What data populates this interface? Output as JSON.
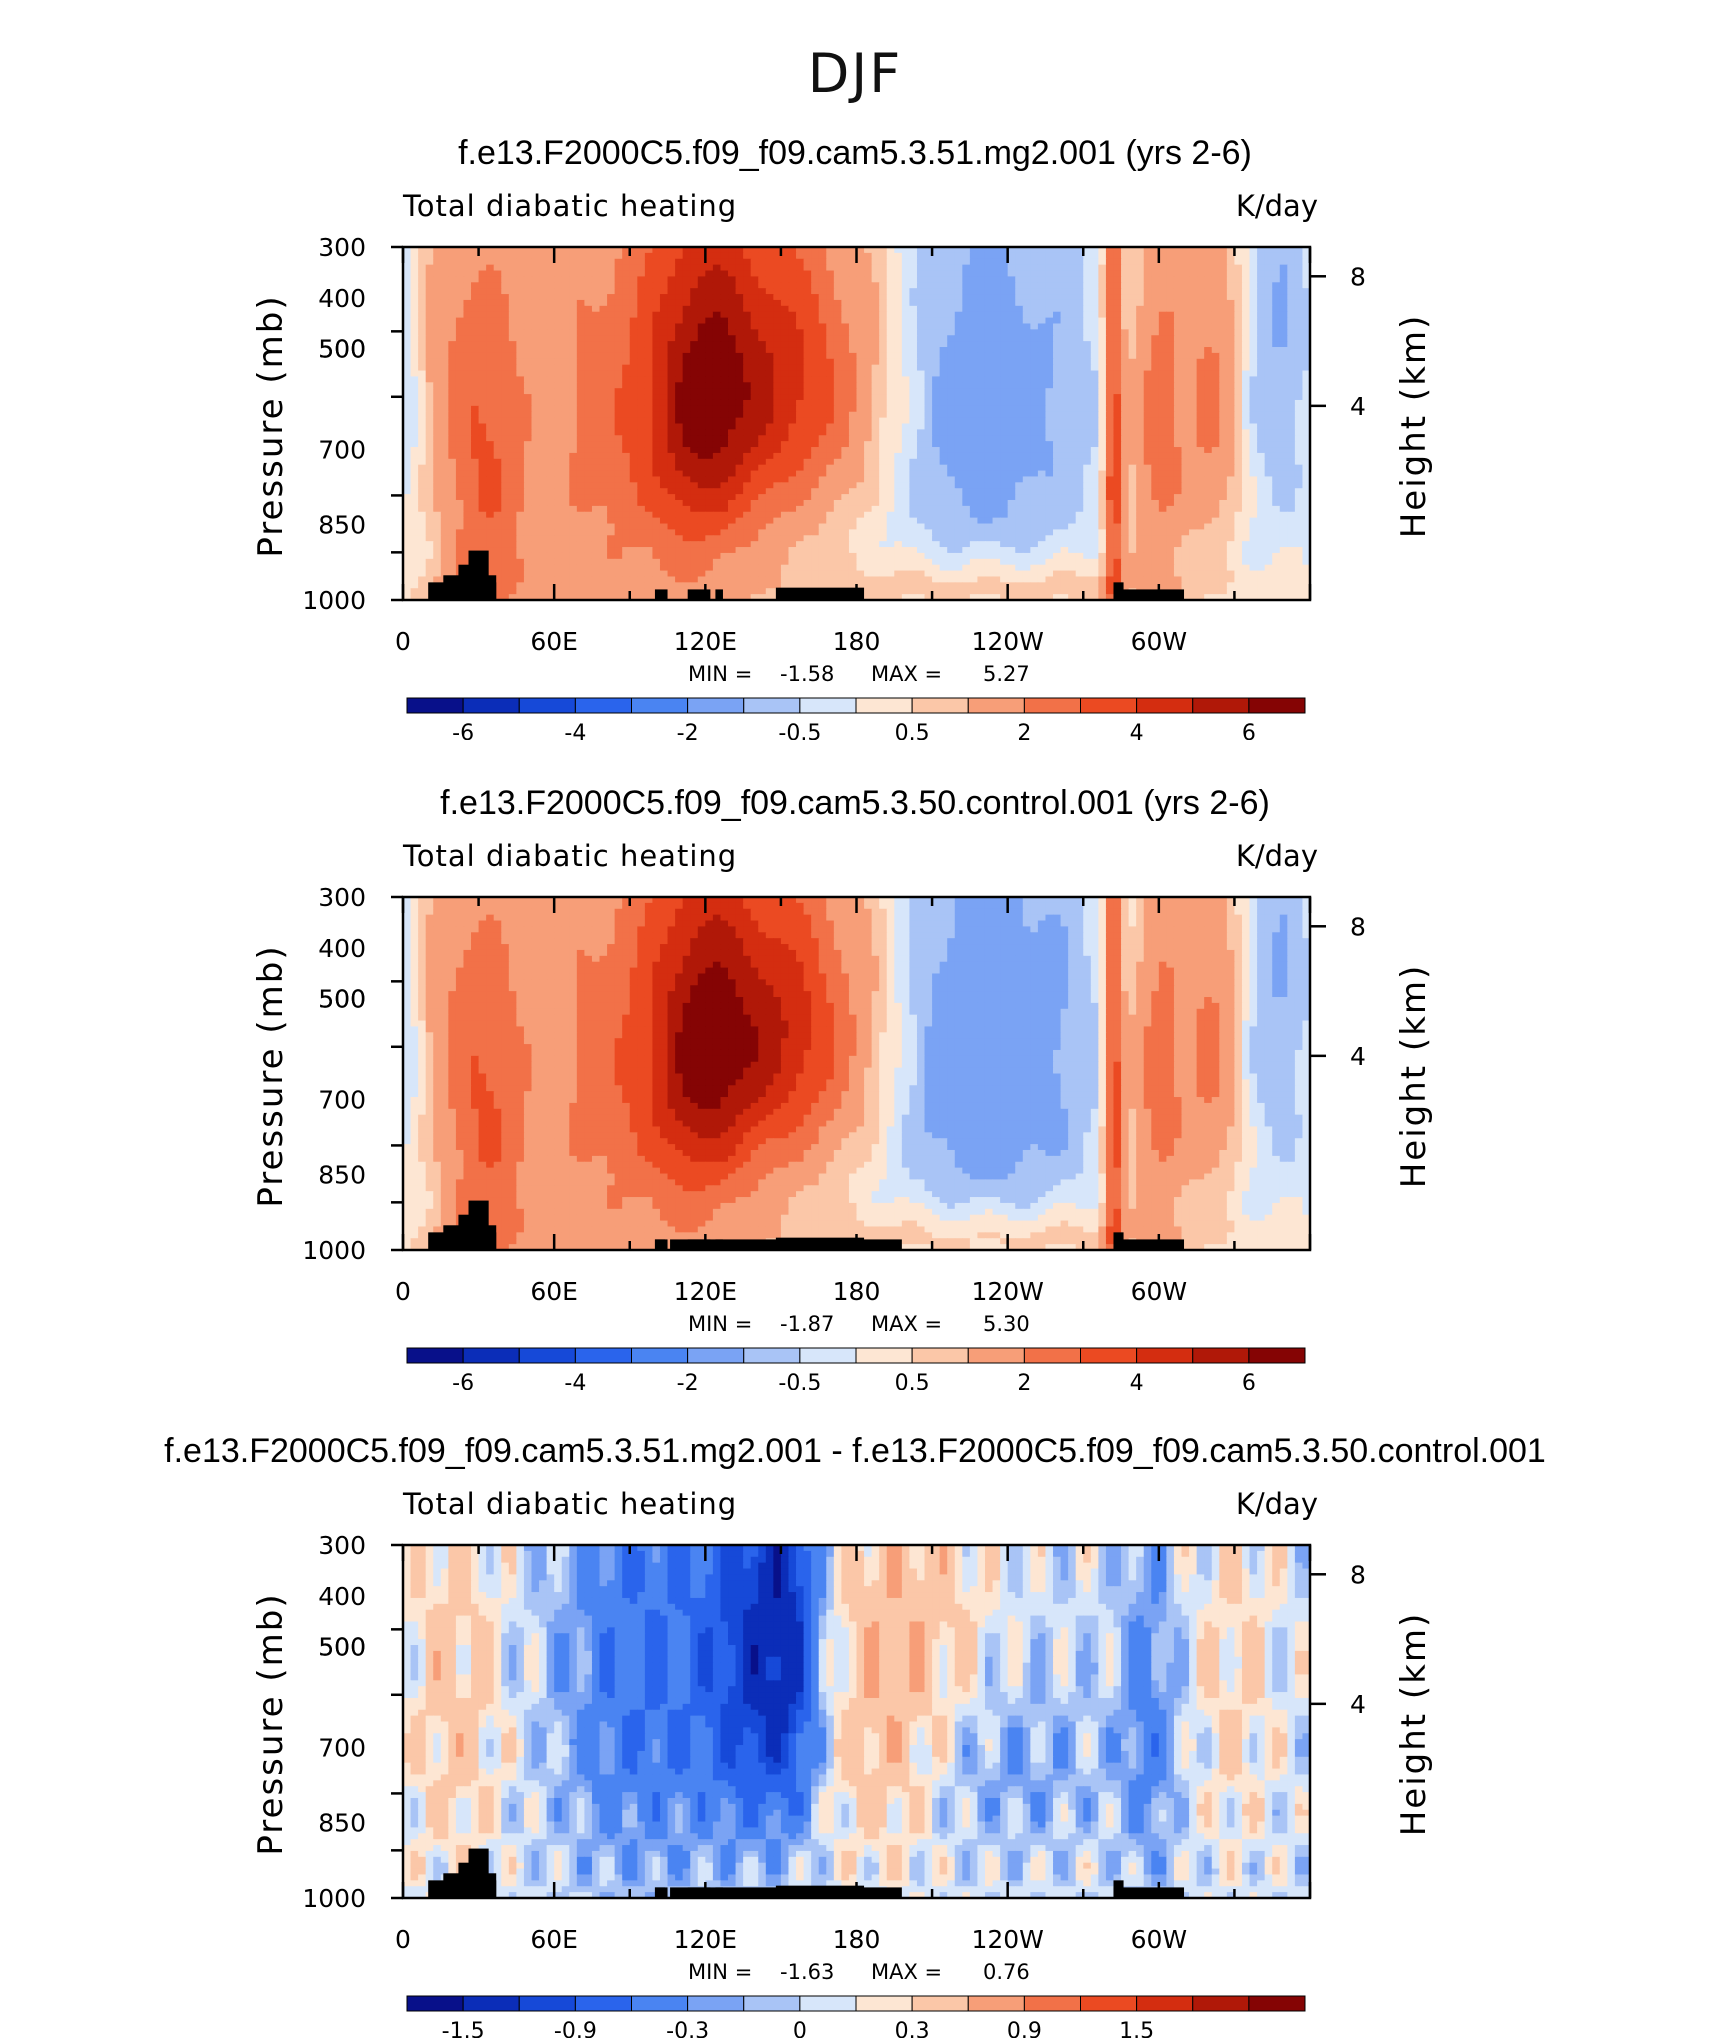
{
  "figure": {
    "title": "DJF"
  },
  "chart_data": [
    {
      "type": "heatmap",
      "title": "f.e13.F2000C5.f09_f09.cam5.3.51.mg2.001 (yrs 2-6)",
      "left_label": "Total diabatic heating",
      "units": "K/day",
      "ylabel": "Pressure (mb)",
      "y2label": "Height (km)",
      "x_ticks": [
        "0",
        "60E",
        "120E",
        "180",
        "120W",
        "60W"
      ],
      "y_ticks": [
        "300",
        "400",
        "500",
        "500",
        "700",
        "850",
        "1000"
      ],
      "y2_ticks": [
        "8",
        "4"
      ],
      "xlim": [
        0,
        360
      ],
      "ylim": [
        1000,
        300
      ],
      "stats": {
        "min_label": "MIN =",
        "min": "-1.58",
        "max_label": "MAX =",
        "max": "5.27"
      },
      "colorbar": {
        "levels": [
          -7,
          -6,
          -5,
          -4,
          -3,
          -2,
          -1,
          -0.5,
          0,
          0.5,
          1,
          2,
          3,
          4,
          5,
          6,
          7
        ],
        "tick_labels": [
          "-6",
          "-4",
          "-2",
          "-0.5",
          "0.5",
          "2",
          "4",
          "6"
        ],
        "colors": [
          "#08108a",
          "#0b2db8",
          "#1649d8",
          "#2a64ec",
          "#4a84f2",
          "#7aa3f4",
          "#a9c4f6",
          "#d7e6fa",
          "#fde6d3",
          "#fbc7a8",
          "#f79e78",
          "#f27148",
          "#eb4a22",
          "#d42d10",
          "#b01808",
          "#850404"
        ]
      },
      "field_description": "Heating 0.5-4 K/day across 30E-160W, maximum ~5 K/day near 150E 500 mb; cooling -0.5 to -1.5 K/day over 170W-100W in middle troposphere; narrow heating columns near 35E and 80W; topography shaded black near surface."
    },
    {
      "type": "heatmap",
      "title": "f.e13.F2000C5.f09_f09.cam5.3.50.control.001 (yrs 2-6)",
      "left_label": "Total diabatic heating",
      "units": "K/day",
      "ylabel": "Pressure (mb)",
      "y2label": "Height (km)",
      "x_ticks": [
        "0",
        "60E",
        "120E",
        "180",
        "120W",
        "60W"
      ],
      "y_ticks": [
        "300",
        "400",
        "500",
        "500",
        "700",
        "850",
        "1000"
      ],
      "y2_ticks": [
        "8",
        "4"
      ],
      "xlim": [
        0,
        360
      ],
      "ylim": [
        1000,
        300
      ],
      "stats": {
        "min_label": "MIN =",
        "min": "-1.87",
        "max_label": "MAX =",
        "max": "5.30"
      },
      "colorbar": {
        "levels": [
          -7,
          -6,
          -5,
          -4,
          -3,
          -2,
          -1,
          -0.5,
          0,
          0.5,
          1,
          2,
          3,
          4,
          5,
          6,
          7
        ],
        "tick_labels": [
          "-6",
          "-4",
          "-2",
          "-0.5",
          "0.5",
          "2",
          "4",
          "6"
        ],
        "colors": [
          "#08108a",
          "#0b2db8",
          "#1649d8",
          "#2a64ec",
          "#4a84f2",
          "#7aa3f4",
          "#a9c4f6",
          "#d7e6fa",
          "#fde6d3",
          "#fbc7a8",
          "#f79e78",
          "#f27148",
          "#eb4a22",
          "#d42d10",
          "#b01808",
          "#850404"
        ]
      },
      "field_description": "Similar pattern to panel 1 with broader cooling over 180-100W and slightly stronger heating near 150E."
    },
    {
      "type": "heatmap",
      "title": "f.e13.F2000C5.f09_f09.cam5.3.51.mg2.001 - f.e13.F2000C5.f09_f09.cam5.3.50.control.001",
      "left_label": "Total diabatic heating",
      "units": "K/day",
      "ylabel": "Pressure (mb)",
      "y2label": "Height (km)",
      "x_ticks": [
        "0",
        "60E",
        "120E",
        "180",
        "120W",
        "60W"
      ],
      "y_ticks": [
        "300",
        "400",
        "500",
        "500",
        "700",
        "850",
        "1000"
      ],
      "y2_ticks": [
        "8",
        "4"
      ],
      "xlim": [
        0,
        360
      ],
      "ylim": [
        1000,
        300
      ],
      "stats": {
        "min_label": "MIN =",
        "min": "-1.63",
        "max_label": "MAX =",
        "max": "0.76"
      },
      "colorbar": {
        "levels": [
          -1.8,
          -1.5,
          -1.2,
          -0.9,
          -0.6,
          -0.3,
          -0.15,
          0,
          0.15,
          0.3,
          0.6,
          0.9,
          1.2,
          1.5,
          1.8,
          2.1
        ],
        "tick_labels": [
          "-1.5",
          "-0.9",
          "-0.3",
          "0",
          "0.3",
          "0.9",
          "1.5"
        ],
        "colors": [
          "#08108a",
          "#0b2db8",
          "#1649d8",
          "#2a64ec",
          "#4a84f2",
          "#7aa3f4",
          "#a9c4f6",
          "#d7e6fa",
          "#fde6d3",
          "#fbc7a8",
          "#f79e78",
          "#f27148",
          "#eb4a22",
          "#d42d10",
          "#b01808",
          "#850404"
        ]
      },
      "field_description": "Difference: negative -0.3 to -1.5 K/day over 80E-170E upper troposphere; positive 0.15-0.6 K/day near 180-140W and 0-30E; mixed small differences elsewhere."
    }
  ]
}
